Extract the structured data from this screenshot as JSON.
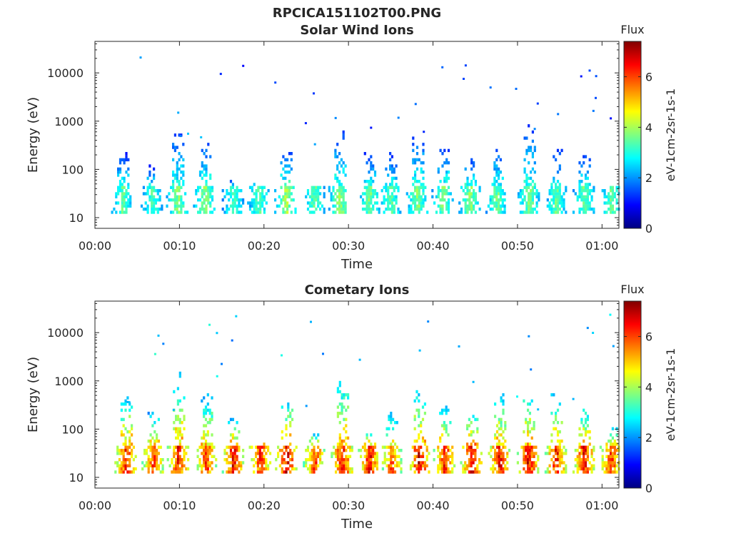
{
  "figure_title": "RPCICA151102T00.PNG",
  "colorbar": {
    "title": "Flux",
    "label": "eV-1cm-2sr-1s-1",
    "ticks": [
      0,
      2,
      4,
      6
    ],
    "range": [
      0,
      7.4
    ]
  },
  "chart_data": [
    {
      "type": "heatmap",
      "title": "Solar Wind Ions",
      "xlabel": "Time",
      "ylabel": "Energy (eV)",
      "yscale": "log",
      "ylim": [
        6,
        45000
      ],
      "xlim_minutes": [
        0,
        62
      ],
      "xticks": [
        "00:00",
        "00:10",
        "00:20",
        "00:30",
        "00:40",
        "00:50",
        "01:00"
      ],
      "yticks": [
        "10",
        "100",
        "1000",
        "10000"
      ],
      "bursts": [
        {
          "t": 3.2,
          "core": 3.6,
          "peak_energy": 200
        },
        {
          "t": 6.7,
          "core": 3.4,
          "peak_energy": 110
        },
        {
          "t": 9.7,
          "core": 3.9,
          "peak_energy": 500
        },
        {
          "t": 12.9,
          "core": 3.9,
          "peak_energy": 350
        },
        {
          "t": 16.3,
          "core": 3.4,
          "peak_energy": 60
        },
        {
          "t": 19.3,
          "core": 3.6,
          "peak_energy": 50
        },
        {
          "t": 22.5,
          "core": 4.1,
          "peak_energy": 200
        },
        {
          "t": 25.9,
          "core": 3.6,
          "peak_energy": 35
        },
        {
          "t": 28.9,
          "core": 4.0,
          "peak_energy": 600
        },
        {
          "t": 32.4,
          "core": 3.8,
          "peak_energy": 200
        },
        {
          "t": 34.9,
          "core": 3.6,
          "peak_energy": 200
        },
        {
          "t": 38.1,
          "core": 3.9,
          "peak_energy": 500
        },
        {
          "t": 41.1,
          "core": 3.8,
          "peak_energy": 250
        },
        {
          "t": 44.3,
          "core": 3.9,
          "peak_energy": 150
        },
        {
          "t": 47.5,
          "core": 3.7,
          "peak_energy": 300
        },
        {
          "t": 51.3,
          "core": 3.8,
          "peak_energy": 800
        },
        {
          "t": 54.5,
          "core": 3.6,
          "peak_energy": 250
        },
        {
          "t": 57.8,
          "core": 3.7,
          "peak_energy": 200
        },
        {
          "t": 61.0,
          "core": 3.6,
          "peak_energy": 45
        }
      ]
    },
    {
      "type": "heatmap",
      "title": "Cometary Ions",
      "xlabel": "Time",
      "ylabel": "Energy (eV)",
      "yscale": "log",
      "ylim": [
        6,
        45000
      ],
      "xlim_minutes": [
        0,
        62
      ],
      "xticks": [
        "00:00",
        "00:10",
        "00:20",
        "00:30",
        "00:40",
        "00:50",
        "01:00"
      ],
      "yticks": [
        "10",
        "100",
        "1000",
        "10000"
      ],
      "bursts": [
        {
          "t": 3.6,
          "core": 6.6,
          "peak_energy": 500
        },
        {
          "t": 6.8,
          "core": 6.2,
          "peak_energy": 200
        },
        {
          "t": 9.8,
          "core": 6.6,
          "peak_energy": 1400
        },
        {
          "t": 13.1,
          "core": 6.3,
          "peak_energy": 500
        },
        {
          "t": 16.3,
          "core": 6.8,
          "peak_energy": 150
        },
        {
          "t": 19.5,
          "core": 6.4,
          "peak_energy": 60
        },
        {
          "t": 22.6,
          "core": 6.9,
          "peak_energy": 400
        },
        {
          "t": 25.9,
          "core": 6.2,
          "peak_energy": 80
        },
        {
          "t": 29.2,
          "core": 6.7,
          "peak_energy": 1000
        },
        {
          "t": 32.4,
          "core": 6.6,
          "peak_energy": 80
        },
        {
          "t": 35.0,
          "core": 6.0,
          "peak_energy": 200
        },
        {
          "t": 38.3,
          "core": 6.9,
          "peak_energy": 600
        },
        {
          "t": 41.3,
          "core": 6.5,
          "peak_energy": 300
        },
        {
          "t": 44.5,
          "core": 6.8,
          "peak_energy": 250
        },
        {
          "t": 47.8,
          "core": 6.7,
          "peak_energy": 500
        },
        {
          "t": 51.2,
          "core": 6.8,
          "peak_energy": 600
        },
        {
          "t": 54.5,
          "core": 6.6,
          "peak_energy": 500
        },
        {
          "t": 57.8,
          "core": 6.7,
          "peak_energy": 300
        },
        {
          "t": 61.0,
          "core": 6.4,
          "peak_energy": 100
        }
      ]
    }
  ]
}
